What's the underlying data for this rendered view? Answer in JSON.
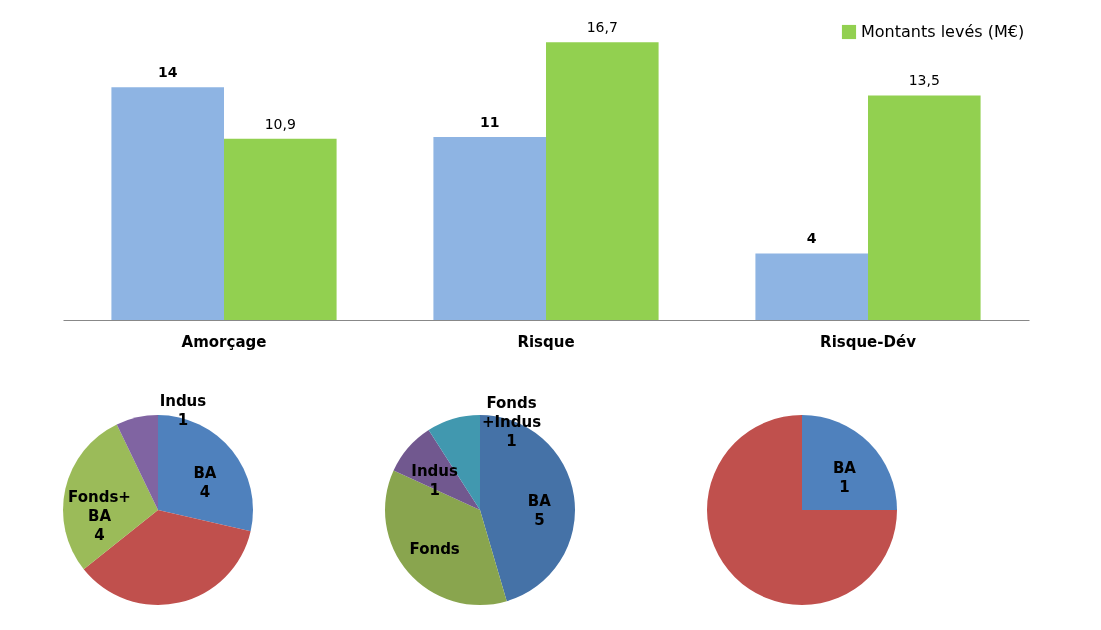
{
  "chart_data": [
    {
      "type": "bar",
      "categories": [
        "Amorçage",
        "Risque",
        "Risque-Dév"
      ],
      "legend": "top right",
      "series": [
        {
          "color": "#8eb4e3",
          "values": [
            14,
            11,
            4
          ],
          "value_labels": [
            "14",
            "11",
            "4"
          ]
        },
        {
          "name": "Montants levés (M€)",
          "color": "#92d050",
          "values": [
            10.9,
            16.7,
            13.5
          ],
          "value_labels": [
            "10,9",
            "16,7",
            "13,5"
          ]
        }
      ]
    },
    {
      "type": "pie",
      "categories": [
        "BA",
        null,
        "Fonds+ BA",
        "Indus"
      ],
      "values": [
        4,
        5,
        4,
        1
      ],
      "colors": [
        "#4f81bd",
        "#c0504d",
        "#9bbb59",
        "#8064a2"
      ],
      "value_labels": [
        "4",
        null,
        "4",
        "1"
      ]
    },
    {
      "type": "pie",
      "categories": [
        "BA",
        "Fonds",
        "Indus",
        "Fonds +Indus"
      ],
      "values": [
        5,
        4,
        1,
        1
      ],
      "colors": [
        "#4572a7",
        "#89a54e",
        "#71588f",
        "#4198af"
      ],
      "value_labels": [
        "5",
        null,
        "1",
        "1"
      ]
    },
    {
      "type": "pie",
      "categories": [
        "BA",
        null
      ],
      "values": [
        1,
        3
      ],
      "colors": [
        "#4f81bd",
        "#c0504d"
      ],
      "value_labels": [
        "1",
        null
      ]
    }
  ]
}
